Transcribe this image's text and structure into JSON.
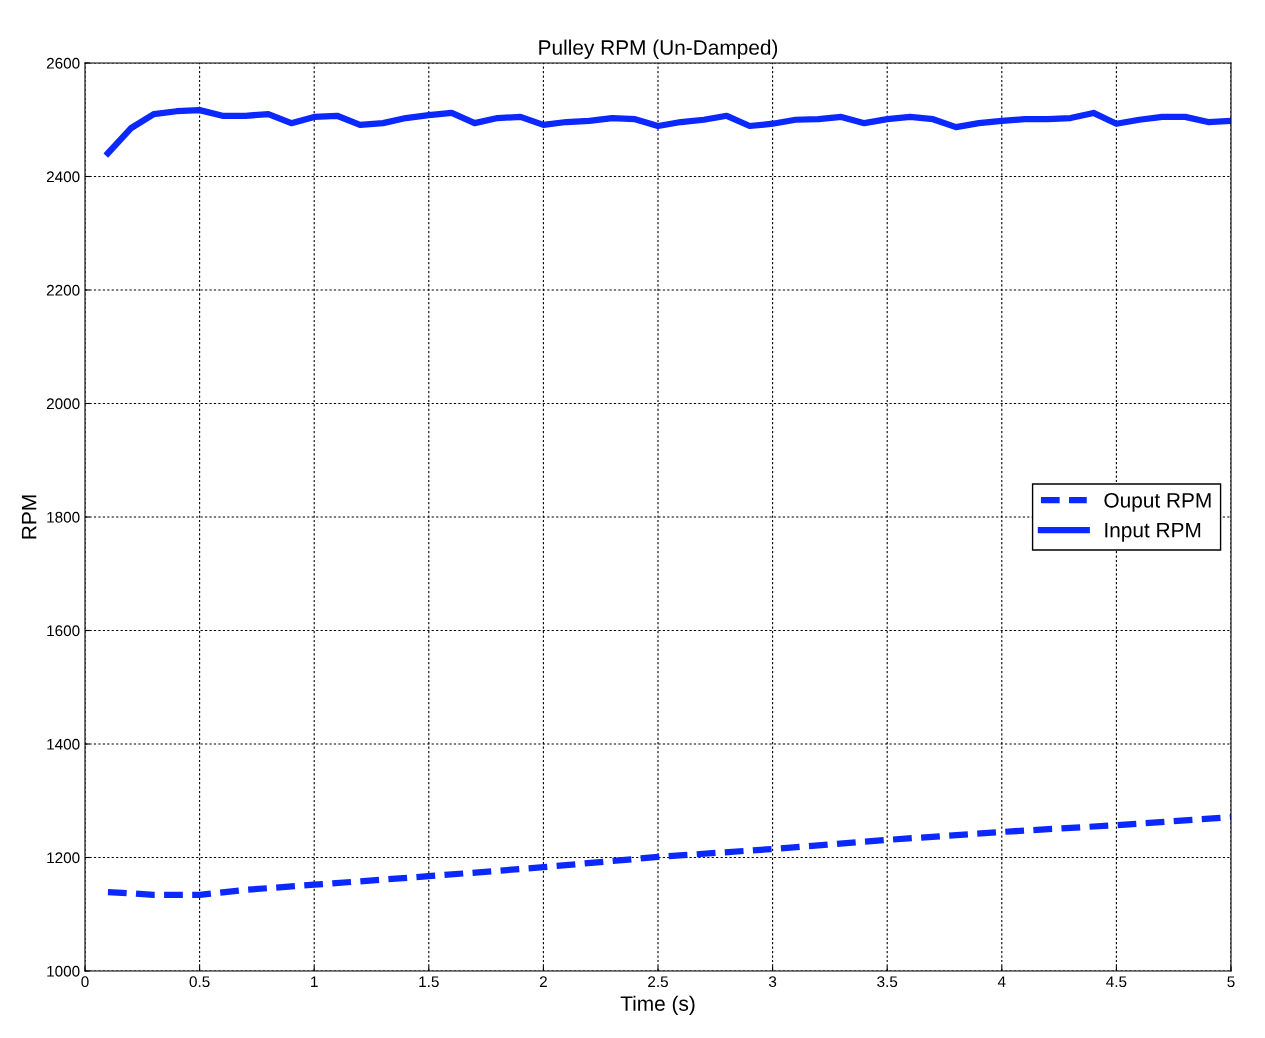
{
  "chart_data": {
    "type": "line",
    "title": "Pulley RPM (Un-Damped)",
    "xlabel": "Time (s)",
    "ylabel": "RPM",
    "xlim": [
      0,
      5
    ],
    "ylim": [
      1000,
      2600
    ],
    "xticks": [
      0,
      0.5,
      1,
      1.5,
      2,
      2.5,
      3,
      3.5,
      4,
      4.5,
      5
    ],
    "yticks": [
      1000,
      1200,
      1400,
      1600,
      1800,
      2000,
      2200,
      2400,
      2600
    ],
    "grid": true,
    "legend": "right",
    "marker": "none",
    "series": [
      {
        "name": "Ouput RPM",
        "color": "#0a28ff",
        "line_style": "dashed",
        "x": [
          0.1,
          0.2,
          0.3,
          0.5,
          0.7,
          1.0,
          1.5,
          2.0,
          2.5,
          3.0,
          3.5,
          4.0,
          4.5,
          5.0
        ],
        "values": [
          1139,
          1137,
          1134,
          1134,
          1143,
          1152,
          1167,
          1183,
          1201,
          1215,
          1231,
          1245,
          1257,
          1271
        ]
      },
      {
        "name": "Input RPM",
        "color": "#0a28ff",
        "line_style": "solid",
        "x": [
          0.1,
          0.2,
          0.3,
          0.4,
          0.5,
          0.6,
          0.7,
          0.8,
          0.9,
          1.0,
          1.1,
          1.2,
          1.3,
          1.4,
          1.5,
          1.6,
          1.7,
          1.8,
          1.9,
          2.0,
          2.1,
          2.2,
          2.3,
          2.4,
          2.5,
          2.6,
          2.7,
          2.8,
          2.9,
          3.0,
          3.1,
          3.2,
          3.3,
          3.4,
          3.5,
          3.6,
          3.7,
          3.8,
          3.9,
          4.0,
          4.1,
          4.2,
          4.3,
          4.4,
          4.5,
          4.6,
          4.7,
          4.8,
          4.9,
          5.0
        ],
        "values": [
          2441,
          2485,
          2510,
          2515,
          2517,
          2507,
          2507,
          2510,
          2494,
          2505,
          2507,
          2491,
          2494,
          2503,
          2508,
          2512,
          2494,
          2503,
          2505,
          2491,
          2496,
          2498,
          2503,
          2501,
          2489,
          2496,
          2500,
          2507,
          2489,
          2493,
          2500,
          2501,
          2505,
          2494,
          2501,
          2505,
          2501,
          2487,
          2494,
          2498,
          2501,
          2501,
          2503,
          2512,
          2493,
          2500,
          2505,
          2505,
          2496,
          2498
        ]
      }
    ]
  }
}
